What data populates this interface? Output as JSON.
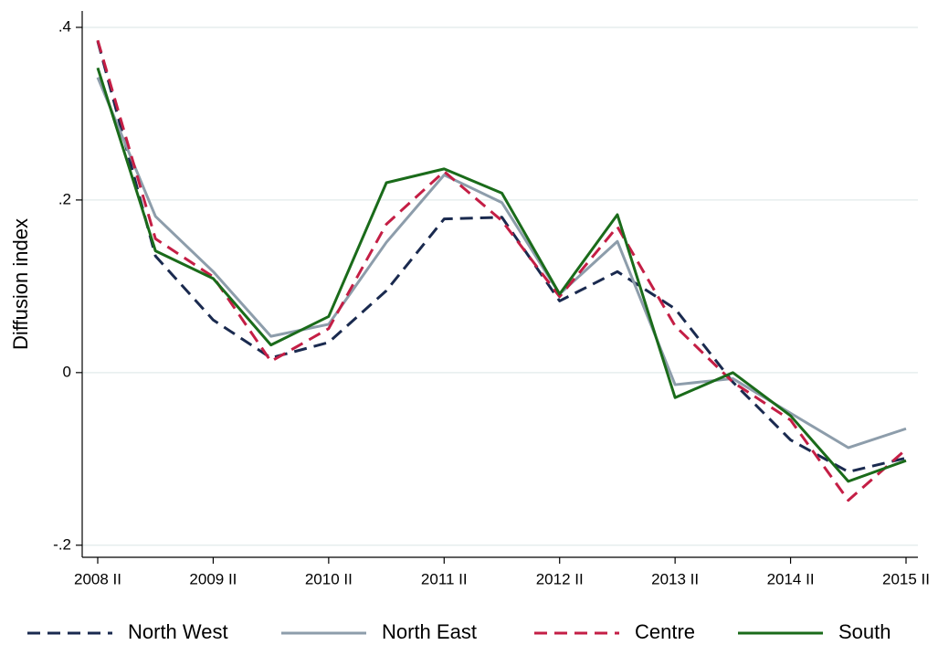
{
  "chart_data": {
    "type": "line",
    "y_label": "Diffusion index",
    "categories": [
      "2008 II",
      null,
      "2009 II",
      null,
      "2010 II",
      null,
      "2011 II",
      null,
      "2012 II",
      null,
      "2013 II",
      null,
      "2014 II",
      null,
      "2015 II"
    ],
    "ylim": [
      -0.214,
      0.419
    ],
    "yticks": [
      {
        "value": -0.2,
        "label": "-.2"
      },
      0,
      {
        "value": 0.2,
        "label": ".2"
      },
      {
        "value": 0.4,
        "label": ".4"
      }
    ],
    "grid": true,
    "legend": "bottom",
    "series": [
      {
        "name": "North West",
        "color": "#1a2a4f",
        "dash": "dash",
        "values": [
          0.384,
          0.135,
          0.061,
          0.017,
          0.035,
          0.095,
          0.178,
          0.18,
          0.083,
          0.117,
          0.074,
          -0.011,
          -0.078,
          -0.115,
          -0.099
        ]
      },
      {
        "name": "North East",
        "color": "#8d9dab",
        "dash": "solid",
        "values": [
          0.342,
          0.181,
          0.117,
          0.042,
          0.056,
          0.151,
          0.229,
          0.197,
          0.091,
          0.152,
          -0.014,
          -0.007,
          -0.047,
          -0.087,
          -0.065
        ]
      },
      {
        "name": "Centre",
        "color": "#c41e45",
        "dash": "dash",
        "values": [
          0.385,
          0.155,
          0.111,
          0.013,
          0.051,
          0.172,
          0.233,
          0.176,
          0.088,
          0.169,
          0.054,
          -0.011,
          -0.055,
          -0.148,
          -0.089
        ]
      },
      {
        "name": "South",
        "color": "#1a6b1a",
        "dash": "solid",
        "values": [
          0.353,
          0.141,
          0.109,
          0.032,
          0.065,
          0.22,
          0.236,
          0.208,
          0.091,
          0.183,
          -0.029,
          0,
          -0.05,
          -0.126,
          -0.102
        ]
      }
    ]
  }
}
